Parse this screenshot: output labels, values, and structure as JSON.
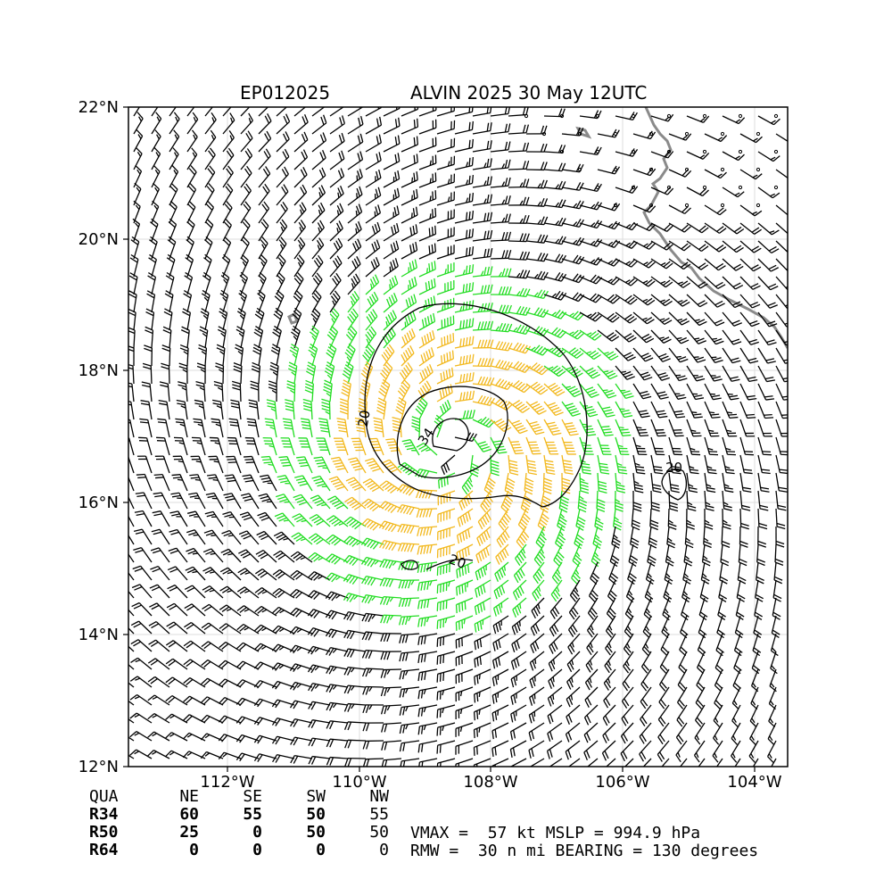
{
  "header": {
    "storm_id": "EP012025",
    "storm_title": "ALVIN 2025 30 May 12UTC"
  },
  "map": {
    "lat_ticks": [
      "22°N",
      "20°N",
      "18°N",
      "16°N",
      "14°N",
      "12°N"
    ],
    "lon_ticks": [
      "112°W",
      "110°W",
      "108°W",
      "106°W",
      "104°W"
    ],
    "contour_labels": [
      "20",
      "34",
      "20",
      "20"
    ],
    "colors": {
      "wind_lt34": "#000000",
      "wind_34_50": "#22dd22",
      "wind_50_64": "#f2b81c",
      "wind_ge64": "#e0441c",
      "coast": "#8a8a8a"
    }
  },
  "radii_table": {
    "header": [
      "QUA",
      "NE",
      "SE",
      "SW",
      "NW"
    ],
    "rows": [
      {
        "label": "R34",
        "values": [
          "60",
          "55",
          "50",
          "55"
        ]
      },
      {
        "label": "R50",
        "values": [
          "25",
          "0",
          "50",
          "50"
        ]
      },
      {
        "label": "R64",
        "values": [
          "0",
          "0",
          "0",
          "0"
        ]
      }
    ]
  },
  "summary": {
    "line1": "VMAX =  57 kt MSLP = 994.9 hPa",
    "line2": "RMW =  30 n mi BEARING = 130 degrees"
  }
}
